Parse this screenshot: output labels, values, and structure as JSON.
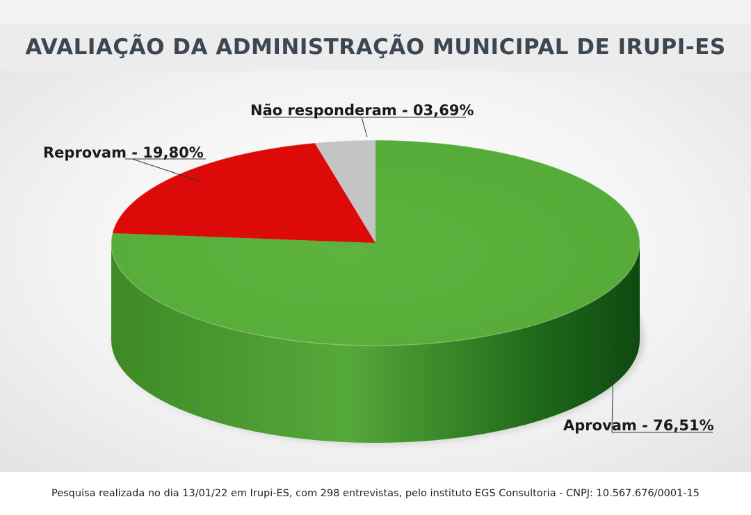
{
  "title": "AVALIAÇÃO DA ADMINISTRAÇÃO MUNICIPAL DE IRUPI-ES",
  "footer": "Pesquisa realizada no dia 13/01/22 em Irupi-ES, com 298 entrevistas, pelo instituto EGS Consultoria - CNPJ: 10.567.676/0001-15",
  "chart_data": {
    "type": "pie",
    "title": "AVALIAÇÃO DA ADMINISTRAÇÃO MUNICIPAL DE IRUPI-ES",
    "slices": [
      {
        "label": "Aprovam - 76,51%",
        "value": 76.51,
        "color": "#55aa37"
      },
      {
        "label": "Reprovam - 19,80%",
        "value": 19.8,
        "color": "#dd0a0a"
      },
      {
        "label": "Não responderam - 03,69%",
        "value": 3.69,
        "color": "#c4c4c4"
      }
    ],
    "style": "3d"
  }
}
